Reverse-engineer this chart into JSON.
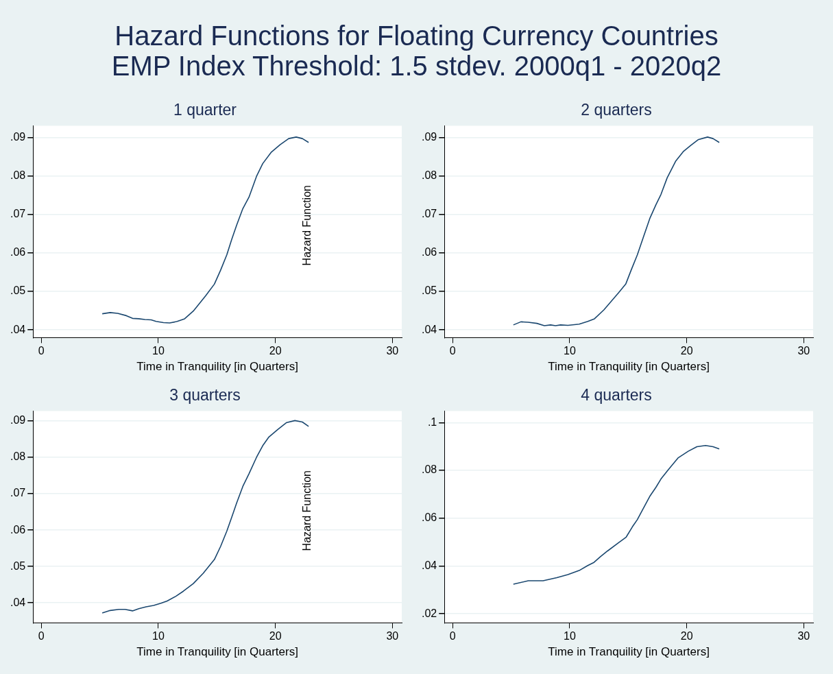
{
  "chart_data": [
    {
      "type": "line",
      "title": "Hazard Functions for Floating Currency Countries\nEMP Index Threshold: 1.5 stdev. 2000q1 - 2020q2",
      "subtitle": "1 quarter",
      "xlabel": "Time in Tranquility [in Quarters]",
      "xlim": [
        -0.7,
        30.8
      ],
      "xticks": [
        0,
        10,
        20,
        30
      ],
      "ylim": [
        0.038,
        0.093
      ],
      "yticks": [
        {
          "value": 0.04,
          "label": ".04"
        },
        {
          "value": 0.05,
          "label": ".05"
        },
        {
          "value": 0.06,
          "label": ".06"
        },
        {
          "value": 0.07,
          "label": ".07"
        },
        {
          "value": 0.08,
          "label": ".08"
        },
        {
          "value": 0.09,
          "label": ".09"
        }
      ],
      "grid": "y",
      "marker": "none",
      "line_style": "solid",
      "annotations": [
        "Hazard Function"
      ],
      "series": [
        {
          "color": "#1a476f",
          "x": [
            5.21,
            5.89,
            6.53,
            7.27,
            7.8,
            8.33,
            8.86,
            9.39,
            9.81,
            10.44,
            10.97,
            11.61,
            12.25,
            12.99,
            14.05,
            14.79,
            15.32,
            15.85,
            16.27,
            16.69,
            17.22,
            17.75,
            18.39,
            18.92,
            19.66,
            20.4,
            21.14,
            21.78,
            22.31,
            22.84
          ],
          "values": [
            0.0442,
            0.0445,
            0.0443,
            0.0437,
            0.043,
            0.0429,
            0.0427,
            0.0426,
            0.0422,
            0.0419,
            0.0418,
            0.0422,
            0.0429,
            0.0449,
            0.0489,
            0.0519,
            0.0555,
            0.0595,
            0.0635,
            0.0672,
            0.0715,
            0.0745,
            0.0799,
            0.0832,
            0.0862,
            0.0881,
            0.0897,
            0.0901,
            0.0897,
            0.0887
          ]
        }
      ]
    },
    {
      "type": "line",
      "subtitle": "2 quarters",
      "xlabel": "Time in Tranquility [in Quarters]",
      "xlim": [
        -0.7,
        30.8
      ],
      "xticks": [
        0,
        10,
        20,
        30
      ],
      "ylim": [
        0.038,
        0.093
      ],
      "yticks": [
        {
          "value": 0.04,
          "label": ".04"
        },
        {
          "value": 0.05,
          "label": ".05"
        },
        {
          "value": 0.06,
          "label": ".06"
        },
        {
          "value": 0.07,
          "label": ".07"
        },
        {
          "value": 0.08,
          "label": ".08"
        },
        {
          "value": 0.09,
          "label": ".09"
        }
      ],
      "grid": "y",
      "marker": "none",
      "line_style": "solid",
      "series": [
        {
          "color": "#1a476f",
          "x": [
            5.19,
            5.83,
            6.46,
            7.2,
            7.84,
            8.37,
            8.79,
            9.22,
            9.85,
            10.81,
            11.55,
            12.12,
            12.92,
            14.19,
            14.79,
            15.25,
            15.78,
            16.31,
            16.84,
            17.37,
            17.8,
            18.33,
            19.07,
            19.7,
            20.34,
            20.97,
            21.78,
            22.25,
            22.78
          ],
          "values": [
            0.0413,
            0.0421,
            0.042,
            0.0417,
            0.0411,
            0.0413,
            0.0411,
            0.0413,
            0.0412,
            0.0415,
            0.0422,
            0.0429,
            0.0452,
            0.0497,
            0.0519,
            0.0555,
            0.0595,
            0.0642,
            0.0689,
            0.0725,
            0.0752,
            0.0795,
            0.0839,
            0.0863,
            0.0879,
            0.0894,
            0.0901,
            0.0897,
            0.0887
          ]
        }
      ]
    },
    {
      "type": "line",
      "subtitle": "3 quarters",
      "xlabel": "Time in Tranquility [in Quarters]",
      "xlim": [
        -0.7,
        30.8
      ],
      "xticks": [
        0,
        10,
        20,
        30
      ],
      "ylim": [
        0.0345,
        0.0927
      ],
      "yticks": [
        {
          "value": 0.04,
          "label": ".04"
        },
        {
          "value": 0.05,
          "label": ".05"
        },
        {
          "value": 0.06,
          "label": ".06"
        },
        {
          "value": 0.07,
          "label": ".07"
        },
        {
          "value": 0.08,
          "label": ".08"
        },
        {
          "value": 0.09,
          "label": ".09"
        }
      ],
      "grid": "y",
      "marker": "none",
      "line_style": "solid",
      "annotations": [
        "Hazard Function"
      ],
      "series": [
        {
          "color": "#1a476f",
          "x": [
            5.21,
            5.89,
            6.63,
            7.16,
            7.8,
            8.33,
            8.96,
            9.6,
            10.23,
            10.76,
            11.5,
            12.14,
            12.99,
            13.83,
            14.79,
            15.32,
            15.85,
            16.27,
            16.69,
            17.22,
            17.75,
            18.39,
            18.92,
            19.45,
            20.19,
            20.93,
            21.67,
            22.31,
            22.84
          ],
          "values": [
            0.0372,
            0.0379,
            0.0382,
            0.0382,
            0.0378,
            0.0384,
            0.0389,
            0.0393,
            0.0399,
            0.0405,
            0.0418,
            0.0432,
            0.0453,
            0.0481,
            0.0519,
            0.0555,
            0.0597,
            0.0635,
            0.0674,
            0.072,
            0.0755,
            0.08,
            0.0832,
            0.0856,
            0.0876,
            0.0895,
            0.0901,
            0.0897,
            0.0885
          ]
        }
      ]
    },
    {
      "type": "line",
      "subtitle": "4 quarters",
      "xlabel": "Time in Tranquility [in Quarters]",
      "xlim": [
        -0.7,
        30.8
      ],
      "xticks": [
        0,
        10,
        20,
        30
      ],
      "ylim": [
        0.0162,
        0.1048
      ],
      "yticks": [
        {
          "value": 0.02,
          "label": ".02"
        },
        {
          "value": 0.04,
          "label": ".04"
        },
        {
          "value": 0.06,
          "label": ".06"
        },
        {
          "value": 0.08,
          "label": ".08"
        },
        {
          "value": 0.1,
          "label": ".1"
        }
      ],
      "grid": "y",
      "marker": "none",
      "line_style": "solid",
      "series": [
        {
          "color": "#1a476f",
          "x": [
            5.19,
            6.46,
            7.73,
            8.9,
            9.85,
            10.81,
            11.55,
            12.08,
            12.61,
            13.24,
            14.19,
            14.83,
            15.36,
            15.78,
            16.21,
            16.84,
            17.37,
            17.8,
            18.43,
            19.28,
            20.13,
            20.87,
            21.61,
            22.25,
            22.78
          ],
          "values": [
            0.0324,
            0.0338,
            0.0338,
            0.0351,
            0.0364,
            0.0381,
            0.0402,
            0.0415,
            0.0438,
            0.0463,
            0.0498,
            0.0521,
            0.0564,
            0.0594,
            0.0633,
            0.0691,
            0.0729,
            0.0764,
            0.0803,
            0.0853,
            0.088,
            0.0899,
            0.0904,
            0.0899,
            0.089
          ]
        }
      ]
    }
  ]
}
